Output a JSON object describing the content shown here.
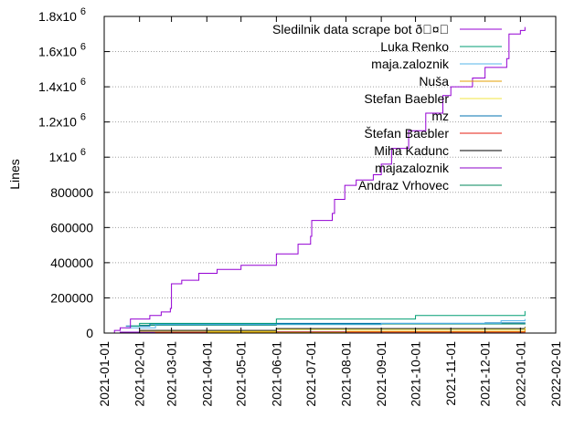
{
  "chart_data": {
    "type": "line",
    "ylabel": "Lines",
    "xlim": [
      "2021-01-01",
      "2022-02-01"
    ],
    "ylim": [
      0,
      1800000
    ],
    "grid": {
      "y": true,
      "x": false
    },
    "legend_position": "top-right",
    "x_ticks": [
      "2021-01-01",
      "2021-02-01",
      "2021-03-01",
      "2021-04-01",
      "2021-05-01",
      "2021-06-01",
      "2021-07-01",
      "2021-08-01",
      "2021-09-01",
      "2021-10-01",
      "2021-11-01",
      "2021-12-01",
      "2022-01-01",
      "2022-02-01"
    ],
    "y_ticks": [
      {
        "value": 0,
        "mantissa": "0"
      },
      {
        "value": 200000,
        "mantissa": "200000"
      },
      {
        "value": 400000,
        "mantissa": "400000"
      },
      {
        "value": 600000,
        "mantissa": "600000"
      },
      {
        "value": 800000,
        "mantissa": "800000"
      },
      {
        "value": 1000000,
        "mantissa": "1x10",
        "exp": "6"
      },
      {
        "value": 1200000,
        "mantissa": "1.2x10",
        "exp": "6"
      },
      {
        "value": 1400000,
        "mantissa": "1.4x10",
        "exp": "6"
      },
      {
        "value": 1600000,
        "mantissa": "1.6x10",
        "exp": "6"
      },
      {
        "value": 1800000,
        "mantissa": "1.8x10",
        "exp": "6"
      }
    ],
    "series": [
      {
        "name": "Sledilnik data scrape bot ð\u0000¤\u0000",
        "color": "#9400d3",
        "points": [
          [
            "2021-01-01",
            0
          ],
          [
            "2021-01-10",
            15000
          ],
          [
            "2021-01-15",
            30000
          ],
          [
            "2021-01-24",
            80000
          ],
          [
            "2021-02-10",
            100000
          ],
          [
            "2021-02-20",
            120000
          ],
          [
            "2021-02-28",
            140000
          ],
          [
            "2021-03-01",
            280000
          ],
          [
            "2021-03-10",
            300000
          ],
          [
            "2021-03-25",
            340000
          ],
          [
            "2021-04-10",
            362000
          ],
          [
            "2021-05-01",
            385000
          ],
          [
            "2021-06-01",
            450000
          ],
          [
            "2021-06-20",
            505000
          ],
          [
            "2021-07-01",
            550000
          ],
          [
            "2021-07-02",
            640000
          ],
          [
            "2021-07-20",
            680000
          ],
          [
            "2021-07-22",
            760000
          ],
          [
            "2021-07-31",
            840000
          ],
          [
            "2021-08-10",
            870000
          ],
          [
            "2021-08-25",
            900000
          ],
          [
            "2021-09-01",
            960000
          ],
          [
            "2021-09-10",
            1050000
          ],
          [
            "2021-09-25",
            1150000
          ],
          [
            "2021-10-10",
            1250000
          ],
          [
            "2021-10-25",
            1350000
          ],
          [
            "2021-11-01",
            1400000
          ],
          [
            "2021-11-20",
            1450000
          ],
          [
            "2021-12-01",
            1510000
          ],
          [
            "2021-12-20",
            1560000
          ],
          [
            "2021-12-22",
            1700000
          ],
          [
            "2022-01-01",
            1720000
          ],
          [
            "2022-01-05",
            1740000
          ]
        ]
      },
      {
        "name": "Luka Renko",
        "color": "#009e73",
        "points": [
          [
            "2021-01-24",
            40000
          ],
          [
            "2021-02-01",
            55000
          ],
          [
            "2021-06-01",
            80000
          ],
          [
            "2021-10-01",
            100000
          ],
          [
            "2022-01-05",
            125000
          ]
        ]
      },
      {
        "name": "maja.zaloznik",
        "color": "#56b4e9",
        "points": [
          [
            "2021-01-20",
            30000
          ],
          [
            "2021-02-15",
            48000
          ],
          [
            "2021-09-01",
            55000
          ],
          [
            "2021-12-15",
            70000
          ],
          [
            "2022-01-05",
            80000
          ]
        ]
      },
      {
        "name": "Nuša",
        "color": "#e69f00",
        "points": [
          [
            "2021-03-01",
            0
          ],
          [
            "2021-04-01",
            5000
          ],
          [
            "2021-08-01",
            10000
          ],
          [
            "2022-01-05",
            25000
          ]
        ]
      },
      {
        "name": "Stefan Baebler",
        "color": "#f0e442",
        "points": [
          [
            "2021-02-01",
            10000
          ],
          [
            "2021-06-01",
            20000
          ],
          [
            "2022-01-05",
            32000
          ]
        ]
      },
      {
        "name": "mz",
        "color": "#0072b2",
        "points": [
          [
            "2021-01-20",
            40000
          ],
          [
            "2021-02-10",
            52000
          ],
          [
            "2021-06-01",
            55000
          ],
          [
            "2021-12-01",
            58000
          ],
          [
            "2022-01-05",
            60000
          ]
        ]
      },
      {
        "name": "Štefan Baebler",
        "color": "#e51e10",
        "points": [
          [
            "2021-01-01",
            0
          ],
          [
            "2021-02-15",
            3000
          ],
          [
            "2021-06-01",
            6000
          ],
          [
            "2022-01-05",
            10000
          ]
        ]
      },
      {
        "name": "Miha Kadunc",
        "color": "#000000",
        "points": [
          [
            "2021-02-01",
            15000
          ],
          [
            "2021-06-01",
            25000
          ],
          [
            "2022-01-05",
            35000
          ]
        ]
      },
      {
        "name": "majazaloznik",
        "color": "#8b00c8",
        "points": [
          [
            "2021-01-01",
            0
          ],
          [
            "2021-01-15",
            5000
          ],
          [
            "2021-04-01",
            8000
          ],
          [
            "2022-01-05",
            12000
          ]
        ]
      },
      {
        "name": "Andraz Vrhovec",
        "color": "#00875a",
        "points": [
          [
            "2021-02-01",
            45000
          ],
          [
            "2021-06-01",
            52000
          ],
          [
            "2022-01-05",
            55000
          ]
        ]
      }
    ]
  }
}
